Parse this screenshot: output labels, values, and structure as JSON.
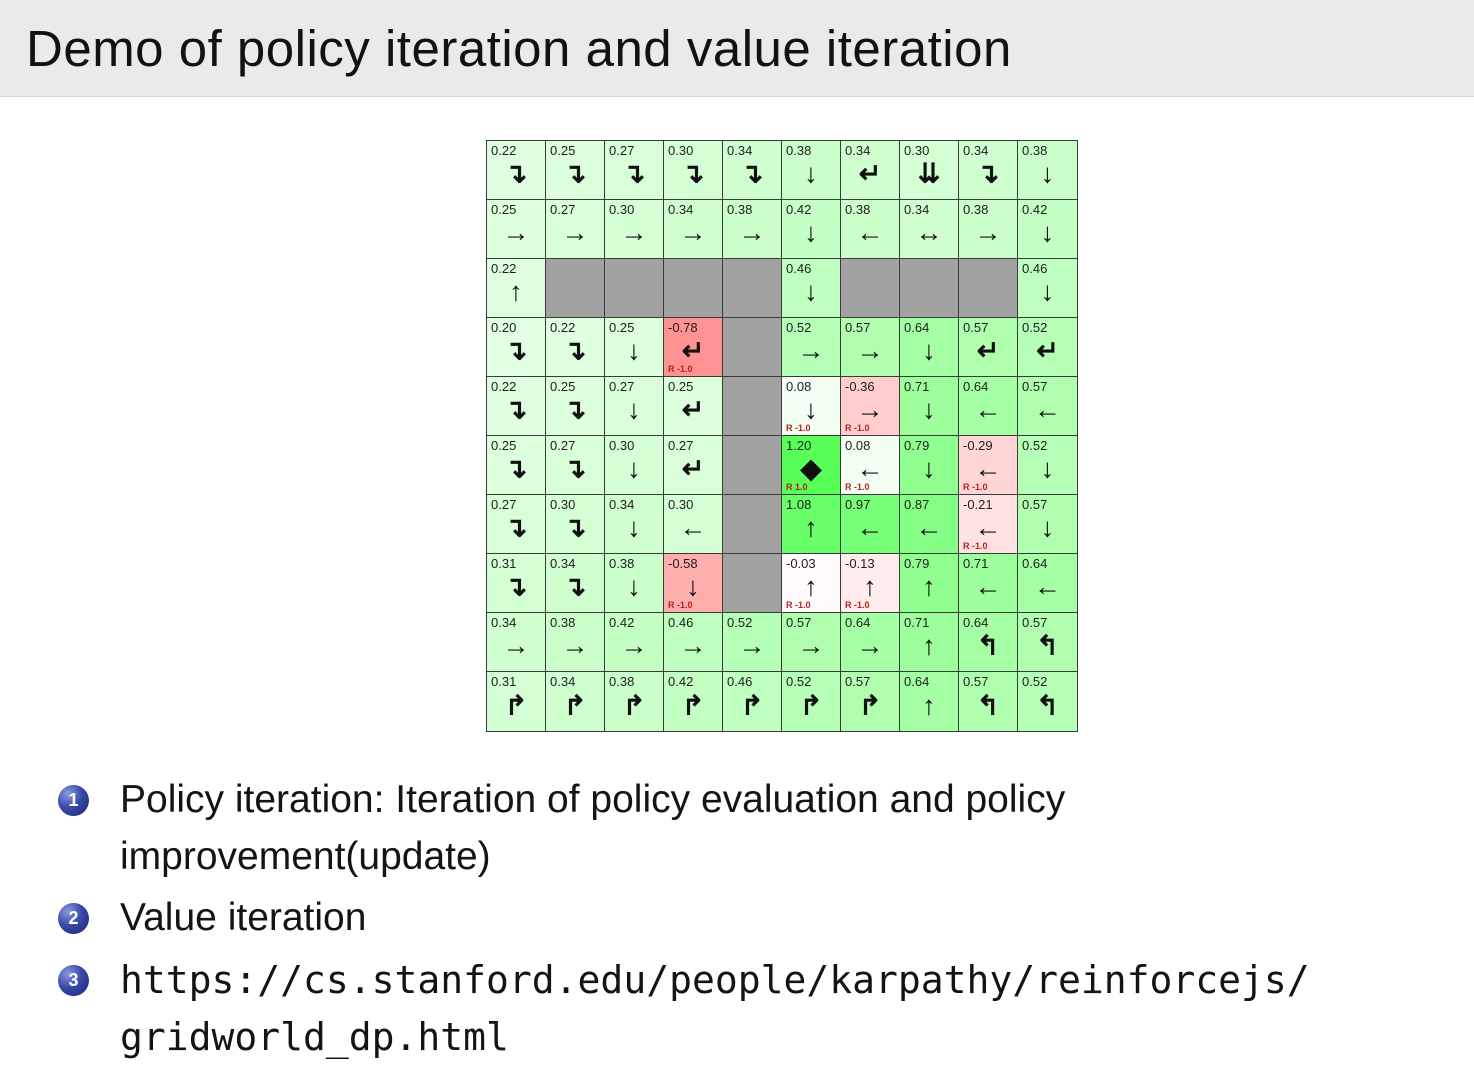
{
  "slide": {
    "title": "Demo of policy iteration and value iteration"
  },
  "gridworld": {
    "columns": 10,
    "colors": {
      "wall": "#a2a2a2",
      "positive_base": "#00ff00",
      "negative_base": "#ff0000",
      "border": "#3a3a3a",
      "reward_text": "#b92020",
      "value_text": "#1e1e1e"
    },
    "rows": [
      [
        {
          "value": "0.22",
          "arrow": "right-down"
        },
        {
          "value": "0.25",
          "arrow": "right-down"
        },
        {
          "value": "0.27",
          "arrow": "right-down"
        },
        {
          "value": "0.30",
          "arrow": "right-down"
        },
        {
          "value": "0.34",
          "arrow": "right-down"
        },
        {
          "value": "0.38",
          "arrow": "down"
        },
        {
          "value": "0.34",
          "arrow": "left-down"
        },
        {
          "value": "0.30",
          "arrow": "down-double"
        },
        {
          "value": "0.34",
          "arrow": "right-down"
        },
        {
          "value": "0.38",
          "arrow": "down"
        }
      ],
      [
        {
          "value": "0.25",
          "arrow": "right"
        },
        {
          "value": "0.27",
          "arrow": "right"
        },
        {
          "value": "0.30",
          "arrow": "right"
        },
        {
          "value": "0.34",
          "arrow": "right"
        },
        {
          "value": "0.38",
          "arrow": "right"
        },
        {
          "value": "0.42",
          "arrow": "down"
        },
        {
          "value": "0.38",
          "arrow": "left"
        },
        {
          "value": "0.34",
          "arrow": "left-right"
        },
        {
          "value": "0.38",
          "arrow": "right"
        },
        {
          "value": "0.42",
          "arrow": "down"
        }
      ],
      [
        {
          "value": "0.22",
          "arrow": "up"
        },
        {
          "wall": true
        },
        {
          "wall": true
        },
        {
          "wall": true
        },
        {
          "wall": true
        },
        {
          "value": "0.46",
          "arrow": "down"
        },
        {
          "wall": true
        },
        {
          "wall": true
        },
        {
          "wall": true
        },
        {
          "value": "0.46",
          "arrow": "down"
        }
      ],
      [
        {
          "value": "0.20",
          "arrow": "right-down"
        },
        {
          "value": "0.22",
          "arrow": "right-down"
        },
        {
          "value": "0.25",
          "arrow": "down"
        },
        {
          "value": "-0.78",
          "arrow": "left-down",
          "reward": "R -1.0"
        },
        {
          "wall": true
        },
        {
          "value": "0.52",
          "arrow": "right"
        },
        {
          "value": "0.57",
          "arrow": "right"
        },
        {
          "value": "0.64",
          "arrow": "down"
        },
        {
          "value": "0.57",
          "arrow": "left-down"
        },
        {
          "value": "0.52",
          "arrow": "left-down"
        }
      ],
      [
        {
          "value": "0.22",
          "arrow": "right-down"
        },
        {
          "value": "0.25",
          "arrow": "right-down"
        },
        {
          "value": "0.27",
          "arrow": "down"
        },
        {
          "value": "0.25",
          "arrow": "left-down"
        },
        {
          "wall": true
        },
        {
          "value": "0.08",
          "arrow": "down",
          "reward": "R -1.0"
        },
        {
          "value": "-0.36",
          "arrow": "right",
          "reward": "R -1.0"
        },
        {
          "value": "0.71",
          "arrow": "down"
        },
        {
          "value": "0.64",
          "arrow": "left"
        },
        {
          "value": "0.57",
          "arrow": "left"
        }
      ],
      [
        {
          "value": "0.25",
          "arrow": "right-down"
        },
        {
          "value": "0.27",
          "arrow": "right-down"
        },
        {
          "value": "0.30",
          "arrow": "down"
        },
        {
          "value": "0.27",
          "arrow": "left-down"
        },
        {
          "wall": true
        },
        {
          "value": "1.20",
          "arrow": "diamond",
          "reward": "R 1.0"
        },
        {
          "value": "0.08",
          "arrow": "left",
          "reward": "R -1.0"
        },
        {
          "value": "0.79",
          "arrow": "down"
        },
        {
          "value": "-0.29",
          "arrow": "left",
          "reward": "R -1.0"
        },
        {
          "value": "0.52",
          "arrow": "down"
        }
      ],
      [
        {
          "value": "0.27",
          "arrow": "right-down"
        },
        {
          "value": "0.30",
          "arrow": "right-down"
        },
        {
          "value": "0.34",
          "arrow": "down"
        },
        {
          "value": "0.30",
          "arrow": "left"
        },
        {
          "wall": true
        },
        {
          "value": "1.08",
          "arrow": "up"
        },
        {
          "value": "0.97",
          "arrow": "left"
        },
        {
          "value": "0.87",
          "arrow": "left"
        },
        {
          "value": "-0.21",
          "arrow": "left",
          "reward": "R -1.0"
        },
        {
          "value": "0.57",
          "arrow": "down"
        }
      ],
      [
        {
          "value": "0.31",
          "arrow": "right-down"
        },
        {
          "value": "0.34",
          "arrow": "right-down"
        },
        {
          "value": "0.38",
          "arrow": "down"
        },
        {
          "value": "-0.58",
          "arrow": "down",
          "reward": "R -1.0"
        },
        {
          "wall": true
        },
        {
          "value": "-0.03",
          "arrow": "up",
          "reward": "R -1.0"
        },
        {
          "value": "-0.13",
          "arrow": "up",
          "reward": "R -1.0"
        },
        {
          "value": "0.79",
          "arrow": "up"
        },
        {
          "value": "0.71",
          "arrow": "left"
        },
        {
          "value": "0.64",
          "arrow": "left"
        }
      ],
      [
        {
          "value": "0.34",
          "arrow": "right"
        },
        {
          "value": "0.38",
          "arrow": "right"
        },
        {
          "value": "0.42",
          "arrow": "right"
        },
        {
          "value": "0.46",
          "arrow": "right"
        },
        {
          "value": "0.52",
          "arrow": "right"
        },
        {
          "value": "0.57",
          "arrow": "right"
        },
        {
          "value": "0.64",
          "arrow": "right"
        },
        {
          "value": "0.71",
          "arrow": "up"
        },
        {
          "value": "0.64",
          "arrow": "up-left"
        },
        {
          "value": "0.57",
          "arrow": "up-left"
        }
      ],
      [
        {
          "value": "0.31",
          "arrow": "up-right"
        },
        {
          "value": "0.34",
          "arrow": "up-right"
        },
        {
          "value": "0.38",
          "arrow": "up-right"
        },
        {
          "value": "0.42",
          "arrow": "up-right"
        },
        {
          "value": "0.46",
          "arrow": "up-right"
        },
        {
          "value": "0.52",
          "arrow": "up-right"
        },
        {
          "value": "0.57",
          "arrow": "up-right"
        },
        {
          "value": "0.64",
          "arrow": "up"
        },
        {
          "value": "0.57",
          "arrow": "up-left"
        },
        {
          "value": "0.52",
          "arrow": "up-left"
        }
      ]
    ]
  },
  "list": {
    "items": [
      {
        "number": "1",
        "text": "Policy iteration: Iteration of policy evaluation and policy improvement(update)"
      },
      {
        "number": "2",
        "text": "Value iteration"
      },
      {
        "number": "3",
        "text": "https://cs.stanford.edu/people/karpathy/reinforcejs/gridworld_dp.html"
      }
    ]
  }
}
